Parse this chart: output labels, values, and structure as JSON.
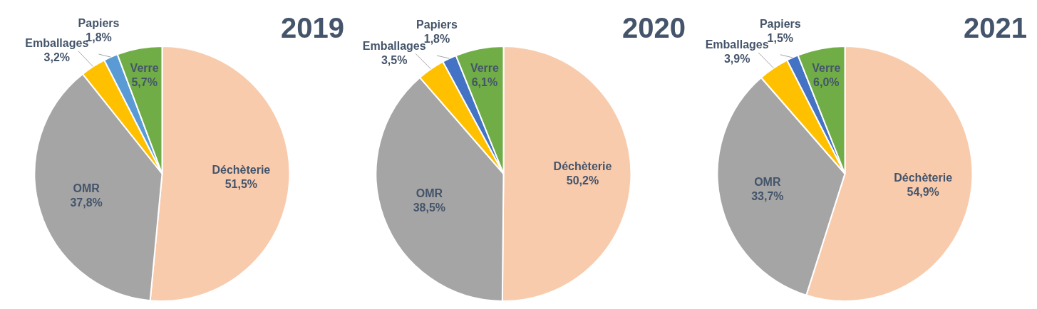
{
  "chart_data": [
    {
      "type": "pie",
      "title": "2019",
      "categories": [
        "Déchèterie",
        "OMR",
        "Emballages",
        "Papiers",
        "Verre"
      ],
      "values": [
        51.5,
        37.8,
        3.2,
        1.8,
        5.7
      ],
      "colors": [
        "#f8cbad",
        "#a5a5a5",
        "#ffc000",
        "#5b9bd5",
        "#70ad47"
      ],
      "value_labels": [
        "51,5%",
        "37,8%",
        "3,2%",
        "1,8%",
        "5,7%"
      ]
    },
    {
      "type": "pie",
      "title": "2020",
      "categories": [
        "Déchèterie",
        "OMR",
        "Emballages",
        "Papiers",
        "Verre"
      ],
      "values": [
        50.2,
        38.5,
        3.5,
        1.8,
        6.1
      ],
      "colors": [
        "#f8cbad",
        "#a5a5a5",
        "#ffc000",
        "#4472c4",
        "#70ad47"
      ],
      "value_labels": [
        "50,2%",
        "38,5%",
        "3,5%",
        "1,8%",
        "6,1%"
      ]
    },
    {
      "type": "pie",
      "title": "2021",
      "categories": [
        "Déchèterie",
        "OMR",
        "Emballages",
        "Papiers",
        "Verre"
      ],
      "values": [
        54.9,
        33.7,
        3.9,
        1.5,
        6.0
      ],
      "colors": [
        "#f8cbad",
        "#a5a5a5",
        "#ffc000",
        "#4472c4",
        "#70ad47"
      ],
      "value_labels": [
        "54,9%",
        "33,7%",
        "3,9%",
        "1,5%",
        "6,0%"
      ]
    }
  ]
}
